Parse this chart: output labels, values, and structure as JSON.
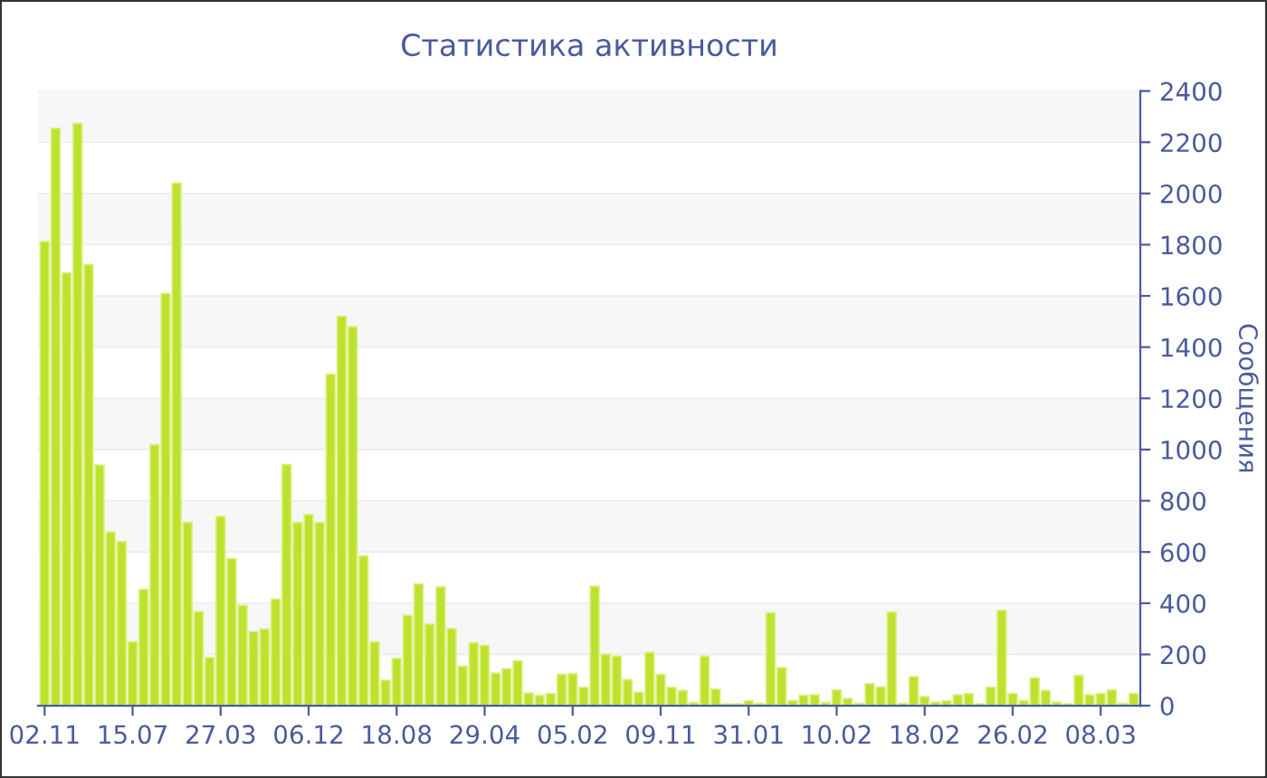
{
  "chart_data": {
    "type": "bar",
    "title": "Статистика активности",
    "ylabel": "Сообщения",
    "categories": [
      "02.11",
      null,
      null,
      null,
      null,
      null,
      null,
      null,
      "15.07",
      null,
      null,
      null,
      null,
      null,
      null,
      null,
      "27.03",
      null,
      null,
      null,
      null,
      null,
      null,
      null,
      "06.12",
      null,
      null,
      null,
      null,
      null,
      null,
      null,
      "18.08",
      null,
      null,
      null,
      null,
      null,
      null,
      null,
      "29.04",
      null,
      null,
      null,
      null,
      null,
      null,
      null,
      "05.02",
      null,
      null,
      null,
      null,
      null,
      null,
      null,
      "09.11",
      null,
      null,
      null,
      null,
      null,
      null,
      null,
      "31.01",
      null,
      null,
      null,
      null,
      null,
      null,
      null,
      "10.02",
      null,
      null,
      null,
      null,
      null,
      null,
      null,
      "18.02",
      null,
      null,
      null,
      null,
      null,
      null,
      null,
      "26.02",
      null,
      null,
      null,
      null,
      null,
      null,
      null,
      "08.03",
      null,
      null,
      null
    ],
    "values": [
      1812,
      2254,
      1689,
      2273,
      1722,
      939,
      678,
      640,
      249,
      454,
      1019,
      1609,
      2040,
      715,
      367,
      188,
      739,
      574,
      391,
      289,
      299,
      416,
      941,
      715,
      746,
      715,
      1294,
      1520,
      1480,
      584,
      249,
      99,
      184,
      353,
      475,
      318,
      463,
      301,
      153,
      245,
      235,
      127,
      144,
      175,
      49,
      40,
      47,
      122,
      125,
      71,
      466,
      200,
      193,
      101,
      52,
      207,
      122,
      71,
      59,
      12,
      193,
      64,
      7,
      7,
      19,
      9,
      362,
      148,
      19,
      40,
      42,
      12,
      61,
      28,
      9,
      85,
      73,
      365,
      9,
      113,
      35,
      14,
      19,
      42,
      47,
      7,
      71,
      372,
      47,
      19,
      108,
      59,
      14,
      7,
      118,
      42,
      47,
      61,
      9,
      47
    ],
    "color": "#bde22e",
    "ylim": [
      0,
      2400
    ],
    "yticks": [
      0,
      200,
      400,
      600,
      800,
      1000,
      1200,
      1400,
      1600,
      1800,
      2000,
      2200,
      2400
    ],
    "grid": "y",
    "legend": false
  }
}
